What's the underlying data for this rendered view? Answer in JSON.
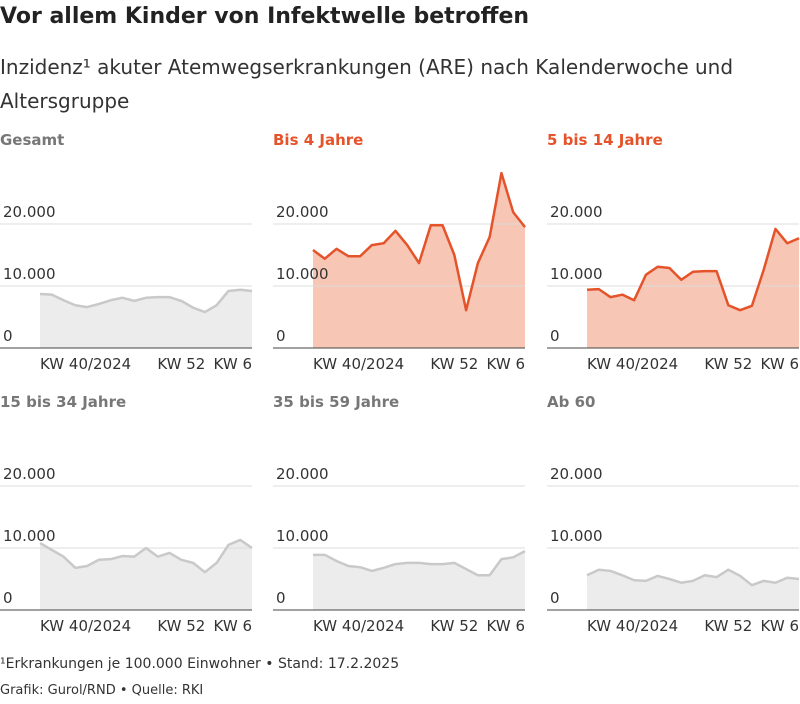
{
  "title": "Vor allem Kinder von Infektwelle betroffen",
  "subtitle": "Inzidenz¹ akuter Atemwegserkrankungen (ARE) nach Kalenderwoche und Altersgruppe",
  "notes": [
    "¹Erkrankungen je 100.000 Einwohner • Stand: 17.2.2025",
    "Grafik: Gurol/RND • Quelle: RKI"
  ],
  "chart_data": [
    {
      "type": "area",
      "title": "Gesamt",
      "color": "#c9c9c9",
      "fill": "#ececec",
      "title_color": "#777777",
      "categories": [
        "KW 40/2024",
        null,
        null,
        null,
        null,
        null,
        null,
        null,
        null,
        null,
        null,
        null,
        "KW 52",
        null,
        null,
        null,
        null,
        null,
        "KW 6"
      ],
      "values": [
        8700,
        8600,
        7700,
        6900,
        6600,
        7100,
        7700,
        8100,
        7600,
        8100,
        8200,
        8200,
        7600,
        6500,
        5800,
        6900,
        9200,
        9400,
        9200
      ],
      "ylim": [
        0,
        30000
      ],
      "yticks": [
        0,
        {
          "value": 10000,
          "label": "10.000"
        },
        {
          "value": 20000,
          "label": "20.000"
        }
      ],
      "grid": true
    },
    {
      "type": "area",
      "title": "Bis 4 Jahre",
      "color": "#e5532a",
      "fill": "#f7c6b5",
      "title_color": "#e5532a",
      "categories": [
        "KW 40/2024",
        null,
        null,
        null,
        null,
        null,
        null,
        null,
        null,
        null,
        null,
        null,
        "KW 52",
        null,
        null,
        null,
        null,
        null,
        "KW 6"
      ],
      "values": [
        15800,
        14400,
        16000,
        14800,
        14800,
        16600,
        16900,
        18900,
        16600,
        13700,
        19800,
        19800,
        15000,
        6100,
        13700,
        17900,
        28200,
        21900,
        19500
      ],
      "ylim": [
        0,
        30000
      ],
      "yticks": [
        0,
        {
          "value": 10000,
          "label": "10.000"
        },
        {
          "value": 20000,
          "label": "20.000"
        }
      ],
      "grid": true
    },
    {
      "type": "area",
      "title": "5 bis 14 Jahre",
      "color": "#e5532a",
      "fill": "#f7c6b5",
      "title_color": "#e5532a",
      "categories": [
        "KW 40/2024",
        null,
        null,
        null,
        null,
        null,
        null,
        null,
        null,
        null,
        null,
        null,
        "KW 52",
        null,
        null,
        null,
        null,
        null,
        "KW 6"
      ],
      "values": [
        9400,
        9500,
        8200,
        8600,
        7700,
        11800,
        13100,
        12900,
        11000,
        12300,
        12400,
        12400,
        6900,
        6100,
        6800,
        12600,
        19200,
        16900,
        17700
      ],
      "ylim": [
        0,
        30000
      ],
      "yticks": [
        0,
        {
          "value": 10000,
          "label": "10.000"
        },
        {
          "value": 20000,
          "label": "20.000"
        }
      ],
      "grid": true
    },
    {
      "type": "area",
      "title": "15 bis 34 Jahre",
      "color": "#c9c9c9",
      "fill": "#ececec",
      "title_color": "#777777",
      "categories": [
        "KW 40/2024",
        null,
        null,
        null,
        null,
        null,
        null,
        null,
        null,
        null,
        null,
        null,
        "KW 52",
        null,
        null,
        null,
        null,
        null,
        "KW 6"
      ],
      "values": [
        10800,
        9700,
        8600,
        6800,
        7100,
        8100,
        8200,
        8700,
        8600,
        10000,
        8600,
        9200,
        8100,
        7600,
        6100,
        7600,
        10500,
        11300,
        10000
      ],
      "ylim": [
        0,
        30000
      ],
      "yticks": [
        0,
        {
          "value": 10000,
          "label": "10.000"
        },
        {
          "value": 20000,
          "label": "20.000"
        }
      ],
      "grid": true
    },
    {
      "type": "area",
      "title": "35 bis 59 Jahre",
      "color": "#c9c9c9",
      "fill": "#ececec",
      "title_color": "#777777",
      "categories": [
        "KW 40/2024",
        null,
        null,
        null,
        null,
        null,
        null,
        null,
        null,
        null,
        null,
        null,
        "KW 52",
        null,
        null,
        null,
        null,
        null,
        "KW 6"
      ],
      "values": [
        8900,
        8900,
        7900,
        7100,
        6900,
        6300,
        6800,
        7400,
        7600,
        7600,
        7400,
        7400,
        7600,
        6600,
        5600,
        5600,
        8200,
        8500,
        9500
      ],
      "ylim": [
        0,
        30000
      ],
      "yticks": [
        0,
        {
          "value": 10000,
          "label": "10.000"
        },
        {
          "value": 20000,
          "label": "20.000"
        }
      ],
      "grid": true
    },
    {
      "type": "area",
      "title": "Ab 60",
      "color": "#c9c9c9",
      "fill": "#ececec",
      "title_color": "#777777",
      "categories": [
        "KW 40/2024",
        null,
        null,
        null,
        null,
        null,
        null,
        null,
        null,
        null,
        null,
        null,
        "KW 52",
        null,
        null,
        null,
        null,
        null,
        "KW 6"
      ],
      "values": [
        5600,
        6500,
        6300,
        5600,
        4800,
        4700,
        5500,
        5000,
        4400,
        4700,
        5600,
        5300,
        6500,
        5500,
        4000,
        4700,
        4400,
        5200,
        5000
      ],
      "ylim": [
        0,
        30000
      ],
      "yticks": [
        0,
        {
          "value": 10000,
          "label": "10.000"
        },
        {
          "value": 20000,
          "label": "20.000"
        }
      ],
      "grid": true
    }
  ]
}
